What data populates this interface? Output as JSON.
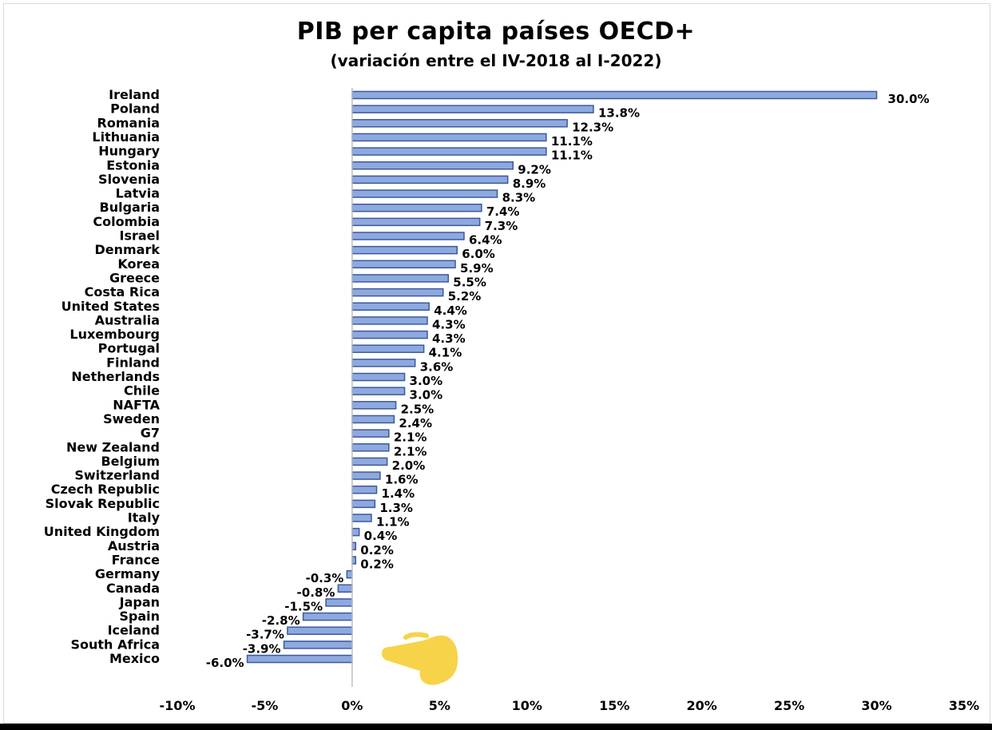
{
  "chart_data": {
    "type": "bar",
    "orientation": "horizontal",
    "title": "PIB per capita países OECD+",
    "subtitle": "(variación entre el IV-2018 al I-2022)",
    "categories": [
      "Ireland",
      "Poland",
      "Romania",
      "Lithuania",
      "Hungary",
      "Estonia",
      "Slovenia",
      "Latvia",
      "Bulgaria",
      "Colombia",
      "Israel",
      "Denmark",
      "Korea",
      "Greece",
      "Costa Rica",
      "United States",
      "Australia",
      "Luxembourg",
      "Portugal",
      "Finland",
      "Netherlands",
      "Chile",
      "NAFTA",
      "Sweden",
      "G7",
      "New Zealand",
      "Belgium",
      "Switzerland",
      "Czech Republic",
      "Slovak Republic",
      "Italy",
      "United Kingdom",
      "Austria",
      "France",
      "Germany",
      "Canada",
      "Japan",
      "Spain",
      "Iceland",
      "South Africa",
      "Mexico"
    ],
    "values": [
      30.0,
      13.8,
      12.3,
      11.1,
      11.1,
      9.2,
      8.9,
      8.3,
      7.4,
      7.3,
      6.4,
      6.0,
      5.9,
      5.5,
      5.2,
      4.4,
      4.3,
      4.3,
      4.1,
      3.6,
      3.0,
      3.0,
      2.5,
      2.4,
      2.1,
      2.1,
      2.0,
      1.6,
      1.4,
      1.3,
      1.1,
      0.4,
      0.2,
      0.2,
      -0.3,
      -0.8,
      -1.5,
      -2.8,
      -3.7,
      -3.9,
      -6.0
    ],
    "value_labels": [
      "30.0%",
      "13.8%",
      "12.3%",
      "11.1%",
      "11.1%",
      "9.2%",
      "8.9%",
      "8.3%",
      "7.4%",
      "7.3%",
      "6.4%",
      "6.0%",
      "5.9%",
      "5.5%",
      "5.2%",
      "4.4%",
      "4.3%",
      "4.3%",
      "4.1%",
      "3.6%",
      "3.0%",
      "3.0%",
      "2.5%",
      "2.4%",
      "2.1%",
      "2.1%",
      "2.0%",
      "1.6%",
      "1.4%",
      "1.3%",
      "1.1%",
      "0.4%",
      "0.2%",
      "0.2%",
      "-0.3%",
      "-0.8%",
      "-1.5%",
      "-2.8%",
      "-3.7%",
      "-3.9%",
      "-6.0%"
    ],
    "xlim": [
      -10,
      35
    ],
    "xticks": [
      -10,
      -5,
      0,
      5,
      10,
      15,
      20,
      25,
      30,
      35
    ],
    "xtick_labels": [
      "-10%",
      "-5%",
      "0%",
      "5%",
      "10%",
      "15%",
      "20%",
      "25%",
      "30%",
      "35%"
    ],
    "grid": false,
    "legend": "none",
    "bar_color": "#8ea9e0",
    "bar_edge_color": "#3c5a9a"
  },
  "annotation": {
    "icon": "pointing-hand-emoji-icon",
    "color": "#f7d34a"
  }
}
